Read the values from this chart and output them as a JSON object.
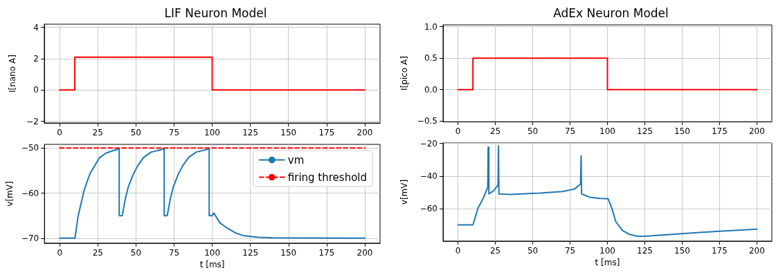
{
  "chart_data": [
    {
      "type": "line",
      "title": "LIF Neuron Model",
      "ylabel": "I[nano A]",
      "xlim": [
        -10,
        210
      ],
      "xticks": [
        0,
        25,
        50,
        75,
        100,
        125,
        150,
        175,
        200
      ],
      "ylim": [
        -2.1,
        4.2
      ],
      "yticks": [
        {
          "value": -2,
          "label": "−2"
        },
        0,
        2,
        4
      ],
      "grid": true,
      "line_style": "solid",
      "marker": "none",
      "series": [
        {
          "color": "#ff0000",
          "x": [
            0,
            10,
            10,
            100,
            100,
            200
          ],
          "values": [
            0,
            0,
            2.1,
            2.1,
            0,
            0
          ]
        }
      ]
    },
    {
      "type": "line",
      "xlabel": "t [ms]",
      "ylabel": "v[mV]",
      "xlim": [
        -10,
        210
      ],
      "xticks": [
        0,
        25,
        50,
        75,
        100,
        125,
        150,
        175,
        200
      ],
      "ylim": [
        -71.1,
        -49.2
      ],
      "yticks": [
        {
          "value": -70,
          "label": "−70"
        },
        {
          "value": -60,
          "label": "−60"
        },
        {
          "value": -50,
          "label": "−50"
        }
      ],
      "grid": true,
      "legend": "top right",
      "marker": "none",
      "series": [
        {
          "name": "vm",
          "color": "#1f77b4",
          "line_style": "solid",
          "x": [
            0,
            10,
            12,
            14,
            16,
            18,
            20,
            23,
            26,
            30,
            34,
            39,
            39,
            41,
            43,
            45,
            48,
            51,
            55,
            60,
            65,
            68.5,
            68.5,
            70.5,
            72.5,
            74.5,
            77.5,
            80.5,
            84.5,
            89.5,
            94.5,
            98,
            98,
            100,
            101,
            105,
            110,
            115,
            120,
            130,
            140,
            200
          ],
          "values": [
            -70,
            -70,
            -65.2,
            -62.3,
            -59.4,
            -57.4,
            -55.6,
            -53.9,
            -52.2,
            -51.2,
            -50.7,
            -50.2,
            -65,
            -65,
            -61.3,
            -58.6,
            -56,
            -54,
            -52.1,
            -50.9,
            -50.5,
            -50.2,
            -65,
            -65,
            -61.3,
            -58.6,
            -56,
            -54,
            -52.1,
            -50.9,
            -50.5,
            -50.2,
            -65,
            -65,
            -64.4,
            -66.6,
            -67.8,
            -68.8,
            -69.4,
            -69.8,
            -69.9,
            -70
          ]
        },
        {
          "name": "firing threshold",
          "color": "#ff0000",
          "line_style": "dashed",
          "x": [
            0,
            200
          ],
          "values": [
            -50,
            -50
          ]
        }
      ]
    },
    {
      "type": "line",
      "title": "AdEx Neuron Model",
      "ylabel": "I[pico A]",
      "xlim": [
        -10,
        210
      ],
      "xticks": [
        0,
        25,
        50,
        75,
        100,
        125,
        150,
        175,
        200
      ],
      "ylim": [
        -0.51,
        1.03
      ],
      "yticks": [
        {
          "value": -0.5,
          "label": "−0.5"
        },
        {
          "value": 0,
          "label": "0.0"
        },
        0.5,
        {
          "value": 1,
          "label": "1.0"
        }
      ],
      "grid": true,
      "line_style": "solid",
      "marker": "none",
      "series": [
        {
          "color": "#ff0000",
          "x": [
            0,
            10,
            10,
            100,
            100,
            200
          ],
          "values": [
            0,
            0,
            0.5,
            0.5,
            0,
            0
          ]
        }
      ]
    },
    {
      "type": "line",
      "xlabel": "t [ms]",
      "ylabel": "v[mV]",
      "xlim": [
        -10,
        210
      ],
      "xticks": [
        0,
        25,
        50,
        75,
        100,
        125,
        150,
        175,
        200
      ],
      "ylim": [
        -80,
        -19.7
      ],
      "yticks": [
        {
          "value": -60,
          "label": "−60"
        },
        {
          "value": -40,
          "label": "−40"
        },
        {
          "value": -20,
          "label": "−20"
        }
      ],
      "grid": true,
      "line_style": "solid",
      "marker": "none",
      "series": [
        {
          "color": "#1f77b4",
          "x": [
            0,
            10,
            13.4,
            16.6,
            19.9,
            20.2,
            20.6,
            20.7,
            24,
            26.8,
            27.1,
            27.4,
            35,
            55,
            70,
            78,
            82,
            82.4,
            82.7,
            88,
            95,
            100.5,
            103,
            105.5,
            110,
            115,
            120,
            125,
            150,
            175,
            200
          ],
          "values": [
            -70,
            -70,
            -59.7,
            -54.2,
            -47,
            -22.3,
            -22.3,
            -51,
            -49,
            -45.5,
            -21.5,
            -51,
            -51.3,
            -50.5,
            -49.5,
            -48,
            -45,
            -27.6,
            -51,
            -53,
            -53.8,
            -54,
            -60,
            -67.9,
            -73.5,
            -76,
            -77,
            -77,
            -75.4,
            -73.9,
            -72.7
          ]
        }
      ]
    }
  ]
}
